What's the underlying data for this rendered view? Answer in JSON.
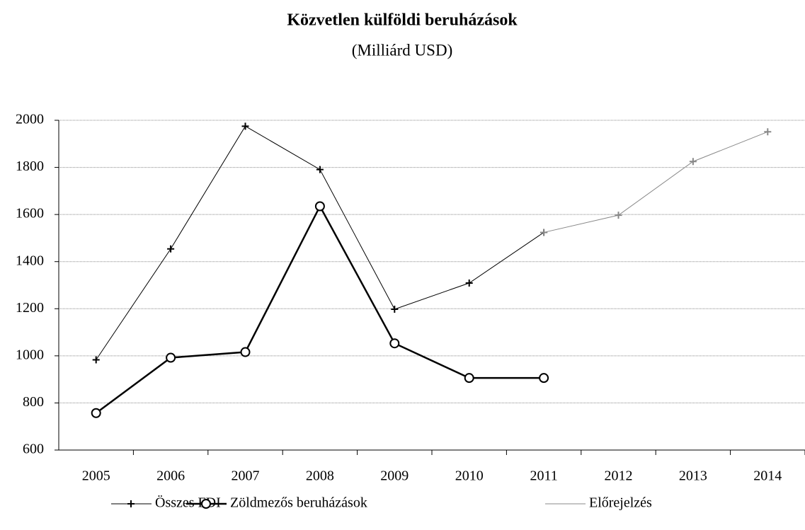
{
  "chart_data": {
    "type": "line",
    "title": "Közvetlen külföldi beruházások",
    "subtitle": "(Milliárd USD)",
    "categories": [
      "2005",
      "2006",
      "2007",
      "2008",
      "2009",
      "2010",
      "2011",
      "2012",
      "2013",
      "2014"
    ],
    "series": [
      {
        "name": "Összes FDI",
        "color": "#000000",
        "marker": "plus",
        "legend_marker": true,
        "line_width": 1,
        "values": [
          983,
          1454,
          1975,
          1791,
          1198,
          1309,
          1524,
          null,
          null,
          null
        ]
      },
      {
        "name": "Zöldmezős beruházások",
        "color": "#000000",
        "marker": "circle",
        "legend_marker": true,
        "line_width": 2.5,
        "values": [
          757,
          992,
          1016,
          1635,
          1053,
          906,
          906,
          null,
          null,
          null
        ]
      },
      {
        "name": "Előrejelzés",
        "color": "#888888",
        "marker": "plus",
        "legend_marker": false,
        "line_width": 1,
        "values": [
          null,
          null,
          null,
          null,
          null,
          null,
          1524,
          1597,
          1825,
          1951
        ]
      }
    ],
    "ylim": [
      600,
      2000
    ],
    "yticks": [
      600,
      800,
      1000,
      1200,
      1400,
      1600,
      1800,
      2000
    ],
    "grid": true,
    "legend": "bottom"
  }
}
